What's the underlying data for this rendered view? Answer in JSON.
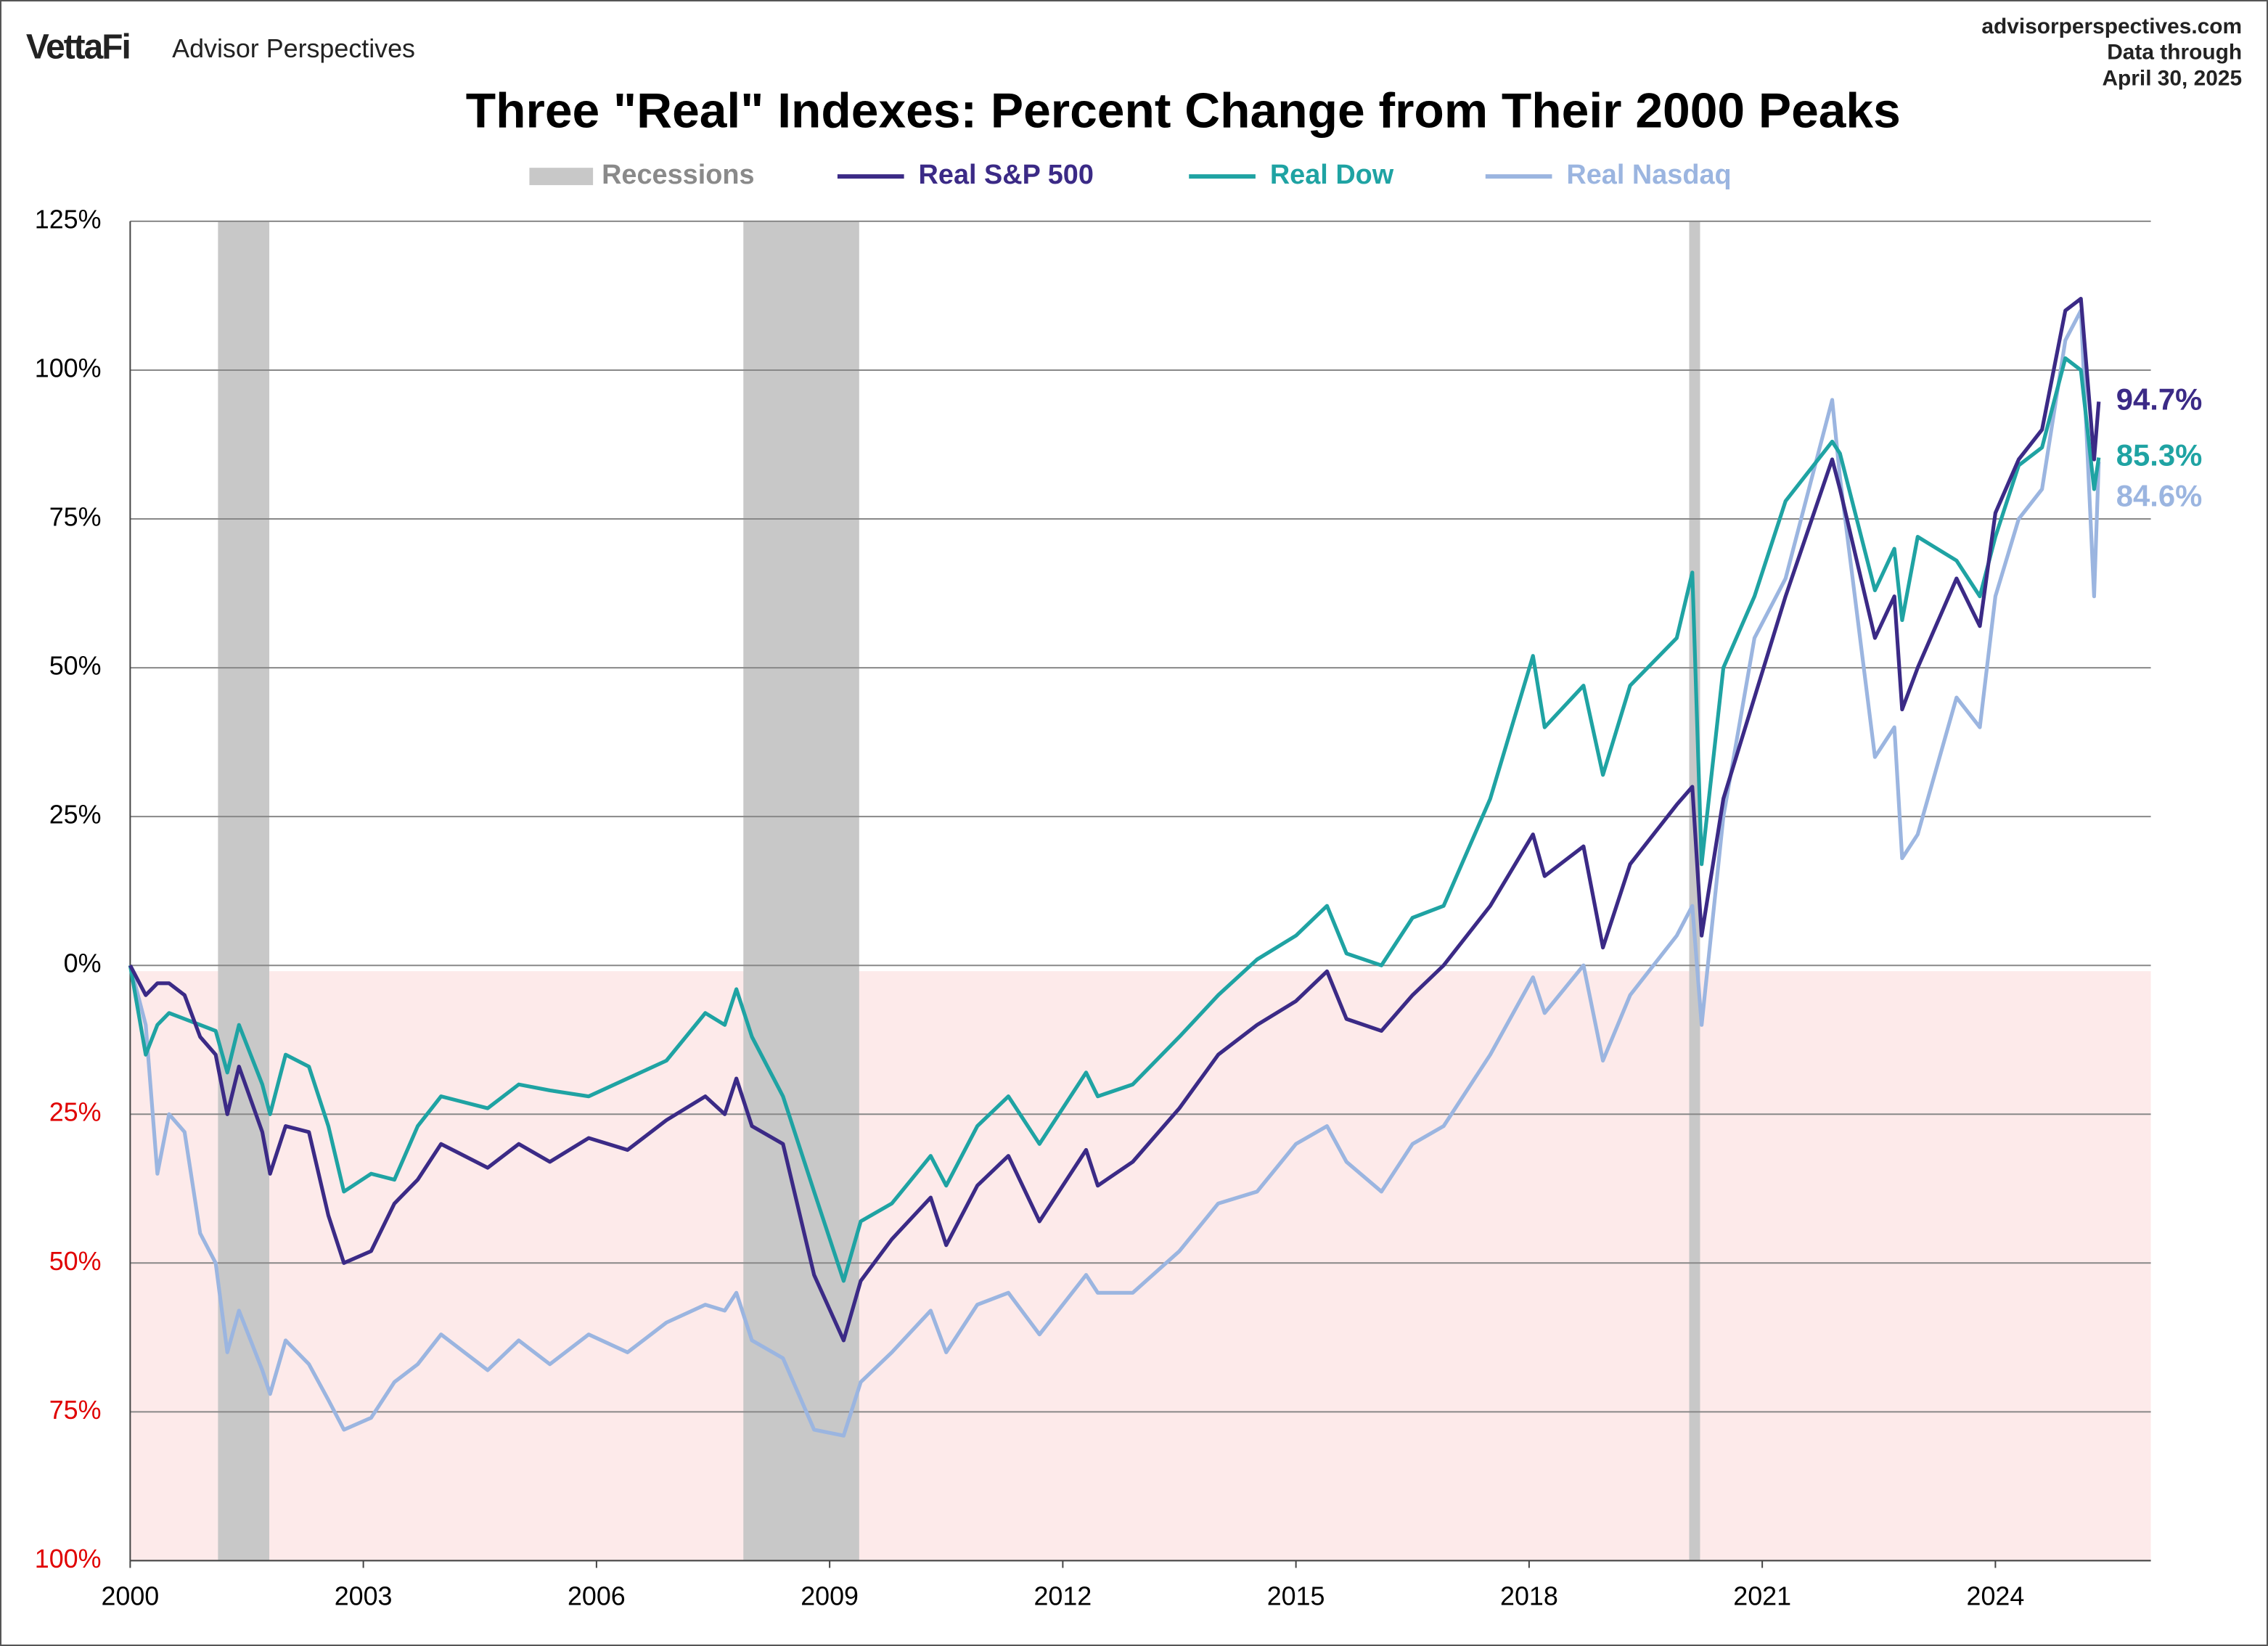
{
  "header": {
    "brand": "VettaFi",
    "brand_sub": "Advisor Perspectives",
    "site": "advisorperspectives.com",
    "note_line1": "Data through",
    "note_line2": "April 30, 2025"
  },
  "chart_data": {
    "type": "line",
    "title": "Three \"Real\" Indexes: Percent Change from Their 2000 Peaks",
    "x": [
      2000.0,
      2000.2,
      2000.35,
      2000.5,
      2000.7,
      2000.9,
      2001.1,
      2001.25,
      2001.4,
      2001.7,
      2001.8,
      2002.0,
      2002.3,
      2002.55,
      2002.75,
      2003.1,
      2003.4,
      2003.7,
      2004.0,
      2004.6,
      2005.0,
      2005.4,
      2005.9,
      2006.4,
      2006.9,
      2007.4,
      2007.65,
      2007.8,
      2008.0,
      2008.4,
      2008.8,
      2009.18,
      2009.4,
      2009.8,
      2010.3,
      2010.5,
      2010.9,
      2011.3,
      2011.7,
      2012.3,
      2012.45,
      2012.9,
      2013.5,
      2014.0,
      2014.5,
      2015.0,
      2015.4,
      2015.65,
      2016.1,
      2016.5,
      2016.9,
      2017.5,
      2018.05,
      2018.2,
      2018.7,
      2018.95,
      2019.3,
      2019.9,
      2020.1,
      2020.22,
      2020.5,
      2020.9,
      2021.3,
      2021.9,
      2022.0,
      2022.45,
      2022.7,
      2022.8,
      2023.0,
      2023.5,
      2023.8,
      2024.0,
      2024.3,
      2024.6,
      2024.9,
      2025.1,
      2025.27,
      2025.33
    ],
    "series": [
      {
        "name": "Real S&P 500",
        "color": "#3b2a86",
        "end_label": "94.7%",
        "values": [
          0,
          -5,
          -3,
          -3,
          -5,
          -12,
          -15,
          -25,
          -17,
          -28,
          -35,
          -27,
          -28,
          -42,
          -50,
          -48,
          -40,
          -36,
          -30,
          -34,
          -30,
          -33,
          -29,
          -31,
          -26,
          -22,
          -25,
          -19,
          -27,
          -30,
          -52,
          -63,
          -53,
          -46,
          -39,
          -47,
          -37,
          -32,
          -43,
          -31,
          -37,
          -33,
          -24,
          -15,
          -10,
          -6,
          -1,
          -9,
          -11,
          -5,
          0,
          10,
          22,
          15,
          20,
          3,
          17,
          27,
          30,
          5,
          28,
          45,
          62,
          85,
          80,
          55,
          62,
          43,
          50,
          65,
          57,
          76,
          85,
          90,
          110,
          112,
          85,
          94.7
        ]
      },
      {
        "name": "Real Dow",
        "color": "#1fa3a3",
        "end_label": "85.3%",
        "values": [
          0,
          -15,
          -10,
          -8,
          -9,
          -10,
          -11,
          -18,
          -10,
          -20,
          -25,
          -15,
          -17,
          -27,
          -38,
          -35,
          -36,
          -27,
          -22,
          -24,
          -20,
          -21,
          -22,
          -19,
          -16,
          -8,
          -10,
          -4,
          -12,
          -22,
          -38,
          -53,
          -43,
          -40,
          -32,
          -37,
          -27,
          -22,
          -30,
          -18,
          -22,
          -20,
          -12,
          -5,
          1,
          5,
          10,
          2,
          0,
          8,
          10,
          28,
          52,
          40,
          47,
          32,
          47,
          55,
          66,
          17,
          50,
          62,
          78,
          88,
          86,
          63,
          70,
          58,
          72,
          68,
          62,
          72,
          84,
          87,
          102,
          100,
          80,
          85.3
        ]
      },
      {
        "name": "Real Nasdaq",
        "color": "#9bb5e0",
        "end_label": "84.6%",
        "values": [
          0,
          -10,
          -35,
          -25,
          -28,
          -45,
          -50,
          -65,
          -58,
          -68,
          -72,
          -63,
          -67,
          -73,
          -78,
          -76,
          -70,
          -67,
          -62,
          -68,
          -63,
          -67,
          -62,
          -65,
          -60,
          -57,
          -58,
          -55,
          -63,
          -66,
          -78,
          -79,
          -70,
          -65,
          -58,
          -65,
          -57,
          -55,
          -62,
          -52,
          -55,
          -55,
          -48,
          -40,
          -38,
          -30,
          -27,
          -33,
          -38,
          -30,
          -27,
          -15,
          -2,
          -8,
          0,
          -16,
          -5,
          5,
          10,
          -10,
          25,
          55,
          65,
          95,
          82,
          35,
          40,
          18,
          22,
          45,
          40,
          62,
          75,
          80,
          105,
          110,
          62,
          84.6
        ]
      }
    ],
    "recessions": {
      "name": "Recessions",
      "color": "#c8c8c8",
      "spans": [
        [
          2001.13,
          2001.79
        ],
        [
          2007.89,
          2009.38
        ],
        [
          2020.06,
          2020.2
        ]
      ]
    },
    "negative_shade": "#fdeaea",
    "negative_tick_color": "#e00000",
    "xlim": [
      2000,
      2026
    ],
    "xticks": [
      2000,
      2003,
      2006,
      2009,
      2012,
      2015,
      2018,
      2021,
      2024
    ],
    "ylim": [
      -100,
      125
    ],
    "yticks": [
      {
        "value": -100,
        "label": "100%"
      },
      {
        "value": -75,
        "label": "75%"
      },
      {
        "value": -50,
        "label": "50%"
      },
      {
        "value": -25,
        "label": "25%"
      },
      {
        "value": 0,
        "label": "0%"
      },
      {
        "value": 25,
        "label": "25%"
      },
      {
        "value": 50,
        "label": "50%"
      },
      {
        "value": 75,
        "label": "75%"
      },
      {
        "value": 100,
        "label": "100%"
      },
      {
        "value": 125,
        "label": "125%"
      }
    ],
    "grid": true
  }
}
